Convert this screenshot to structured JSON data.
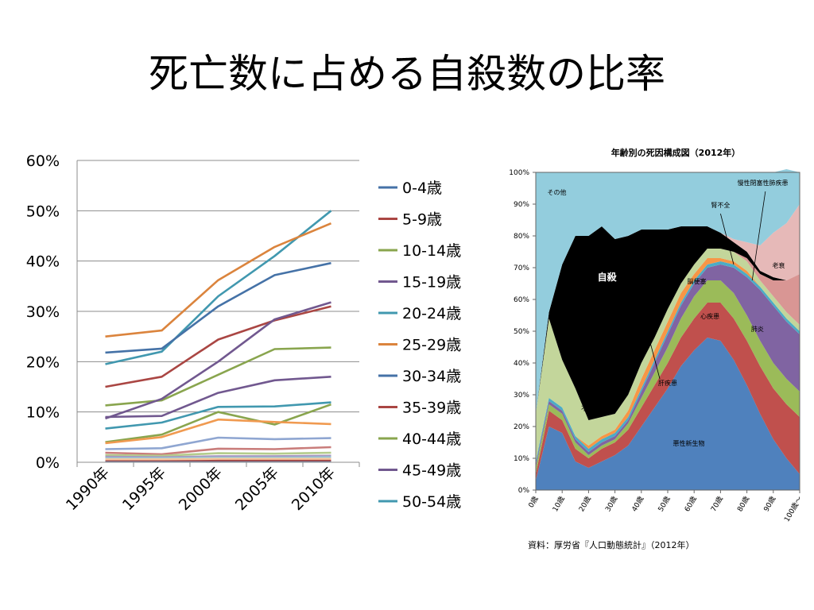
{
  "slide": {
    "title": "死亡数に占める自殺数の比率"
  },
  "chart_data": [
    {
      "type": "line",
      "title": "",
      "xlabel": "",
      "ylabel": "",
      "x": [
        "1990年",
        "1995年",
        "2000年",
        "2005年",
        "2010年"
      ],
      "ylim": [
        0,
        60
      ],
      "yticks": [
        "0%",
        "10%",
        "20%",
        "30%",
        "40%",
        "50%",
        "60%"
      ],
      "grid": true,
      "legend": "right",
      "series": [
        {
          "name": "0-4歳",
          "color": "#4572a7",
          "values": [
            0.3,
            0.3,
            0.3,
            0.3,
            0.3
          ]
        },
        {
          "name": "5-9歳",
          "color": "#aa4643",
          "values": [
            0.4,
            0.4,
            0.4,
            0.4,
            0.4
          ]
        },
        {
          "name": "10-14歳",
          "color": "#89a54e",
          "values": [
            4.0,
            5.5,
            10.0,
            7.5,
            11.5
          ]
        },
        {
          "name": "15-19歳",
          "color": "#71588f",
          "values": [
            9.0,
            9.2,
            13.8,
            16.3,
            17.0
          ]
        },
        {
          "name": "20-24歳",
          "color": "#4198af",
          "values": [
            19.5,
            22.0,
            33.0,
            41.0,
            50.0
          ]
        },
        {
          "name": "25-29歳",
          "color": "#db843d",
          "values": [
            25.0,
            26.2,
            36.2,
            42.8,
            47.5
          ]
        },
        {
          "name": "30-34歳",
          "color": "#4572a7",
          "values": [
            21.8,
            22.6,
            31.0,
            37.2,
            39.6
          ]
        },
        {
          "name": "35-39歳",
          "color": "#aa4643",
          "values": [
            15.0,
            17.0,
            24.4,
            28.2,
            31.0
          ]
        },
        {
          "name": "40-44歳",
          "color": "#89a54e",
          "values": [
            11.3,
            12.3,
            17.4,
            22.5,
            22.8
          ]
        },
        {
          "name": "45-49歳",
          "color": "#71588f",
          "values": [
            8.7,
            12.6,
            20.0,
            28.4,
            31.8
          ]
        },
        {
          "name": "50-54歳",
          "color": "#4198af",
          "values": [
            6.7,
            7.9,
            11.0,
            11.1,
            11.9
          ]
        },
        {
          "name": "",
          "color": "#f09a50",
          "values": [
            3.8,
            5.0,
            8.5,
            8.0,
            7.6
          ]
        },
        {
          "name": "",
          "color": "#8fa6d1",
          "values": [
            2.6,
            2.8,
            4.9,
            4.6,
            4.8
          ]
        },
        {
          "name": "",
          "color": "#c97d7b",
          "values": [
            1.9,
            1.6,
            2.7,
            2.6,
            3.0
          ]
        },
        {
          "name": "",
          "color": "#b4cc8c",
          "values": [
            1.4,
            1.3,
            1.8,
            1.7,
            1.9
          ]
        },
        {
          "name": "",
          "color": "#a797bf",
          "values": [
            1.1,
            1.0,
            1.2,
            1.2,
            1.3
          ]
        },
        {
          "name": "",
          "color": "#93c9d9",
          "values": [
            0.8,
            0.8,
            0.9,
            0.9,
            1.0
          ]
        },
        {
          "name": "",
          "color": "#f4c7a1",
          "values": [
            0.6,
            0.6,
            0.7,
            0.7,
            0.7
          ]
        }
      ]
    },
    {
      "type": "area",
      "title": "年齢別の死因構成図（2012年）",
      "source": "資料：厚労省『人口動態統計』（2012年）",
      "x": [
        0,
        5,
        10,
        15,
        20,
        25,
        30,
        35,
        40,
        45,
        50,
        55,
        60,
        65,
        70,
        75,
        80,
        85,
        90,
        95,
        100
      ],
      "xticks": [
        "0歳",
        "10歳",
        "20歳",
        "30歳",
        "40歳",
        "50歳",
        "60歳",
        "70歳",
        "80歳",
        "90歳",
        "100歳～"
      ],
      "yticks": [
        "0%",
        "10%",
        "20%",
        "30%",
        "40%",
        "50%",
        "60%",
        "70%",
        "80%",
        "90%",
        "100%"
      ],
      "ylim": [
        0,
        100
      ],
      "stacked": true,
      "layers": [
        {
          "name": "悪性新生物",
          "color": "#4f81bd",
          "values": [
            3,
            20,
            18,
            9,
            7,
            9,
            11,
            14,
            20,
            26,
            32,
            39,
            44,
            48,
            47,
            41,
            33,
            24,
            16,
            10,
            5
          ]
        },
        {
          "name": "心疾患",
          "color": "#c0504d",
          "values": [
            2,
            5,
            4,
            4,
            3,
            4,
            4,
            5,
            6,
            7,
            8,
            9,
            10,
            11,
            12,
            13,
            14,
            15,
            16,
            17,
            18
          ]
        },
        {
          "name": "",
          "color": "#9bbb59",
          "values": [
            2,
            2,
            2,
            2,
            1,
            1,
            1,
            2,
            3,
            4,
            5,
            6,
            7,
            7,
            7,
            8,
            8,
            8,
            8,
            8,
            8
          ]
        },
        {
          "name": "脳梗塞",
          "color": "#8064a2",
          "values": [
            1,
            1,
            1,
            1,
            1,
            1,
            1,
            1,
            2,
            3,
            4,
            4,
            4,
            4,
            5,
            8,
            12,
            16,
            18,
            18,
            18
          ]
        },
        {
          "name": "",
          "color": "#4bacc6",
          "values": [
            1,
            1,
            1,
            1,
            1,
            1,
            1,
            1,
            1,
            1,
            1,
            1,
            1,
            1,
            1,
            1,
            1,
            1,
            1,
            1,
            1
          ]
        },
        {
          "name": "肝疾患",
          "color": "#f79646",
          "values": [
            0,
            0,
            0,
            0,
            1,
            1,
            1,
            2,
            3,
            3,
            3,
            3,
            2,
            2,
            1,
            1,
            1,
            0,
            0,
            0,
            0
          ]
        },
        {
          "name": "不慮事故",
          "color": "#c3d69b",
          "values": [
            15,
            25,
            15,
            15,
            8,
            6,
            5,
            5,
            5,
            4,
            4,
            3,
            3,
            3,
            3,
            3,
            3,
            2,
            2,
            2,
            2
          ]
        },
        {
          "name": "",
          "color": "#d99694",
          "values": [
            0,
            0,
            0,
            0,
            0,
            0,
            0,
            0,
            0,
            0,
            0,
            0,
            0,
            0,
            0,
            0,
            1,
            2,
            5,
            10,
            16
          ]
        },
        {
          "name": "自殺",
          "color": "#000000",
          "values": [
            0,
            2,
            30,
            48,
            58,
            60,
            55,
            50,
            42,
            34,
            25,
            18,
            12,
            7,
            5,
            3,
            2,
            1,
            1,
            0,
            0
          ]
        },
        {
          "name": "老衰",
          "color": "#e6b9b8",
          "values": [
            0,
            0,
            0,
            0,
            0,
            0,
            0,
            0,
            0,
            0,
            0,
            0,
            0,
            0,
            0,
            1,
            3,
            8,
            14,
            18,
            22
          ]
        },
        {
          "name": "その他",
          "color": "#93cddd",
          "values": [
            76,
            44,
            29,
            20,
            20,
            17,
            21,
            20,
            18,
            18,
            18,
            17,
            17,
            17,
            19,
            21,
            22,
            23,
            19,
            17,
            10
          ]
        }
      ],
      "annotations": [
        {
          "text": "その他",
          "x": 8,
          "y": 93
        },
        {
          "text": "自殺",
          "x": 27,
          "y": 66
        },
        {
          "text": "不慮事故",
          "x": 22,
          "y": 25
        },
        {
          "text": "悪性新生物",
          "x": 58,
          "y": 14
        },
        {
          "text": "心疾患",
          "x": 66,
          "y": 54
        },
        {
          "text": "脳梗塞",
          "x": 61,
          "y": 65
        },
        {
          "text": "肺炎",
          "x": 84,
          "y": 50
        },
        {
          "text": "肝疾患",
          "x": 50,
          "y": 33
        },
        {
          "text": "老衰",
          "x": 92,
          "y": 70
        },
        {
          "text": "腎不全",
          "x": 70,
          "y": 89
        },
        {
          "text": "慢性閉塞性肺疾患",
          "x": 86,
          "y": 96
        }
      ]
    }
  ]
}
